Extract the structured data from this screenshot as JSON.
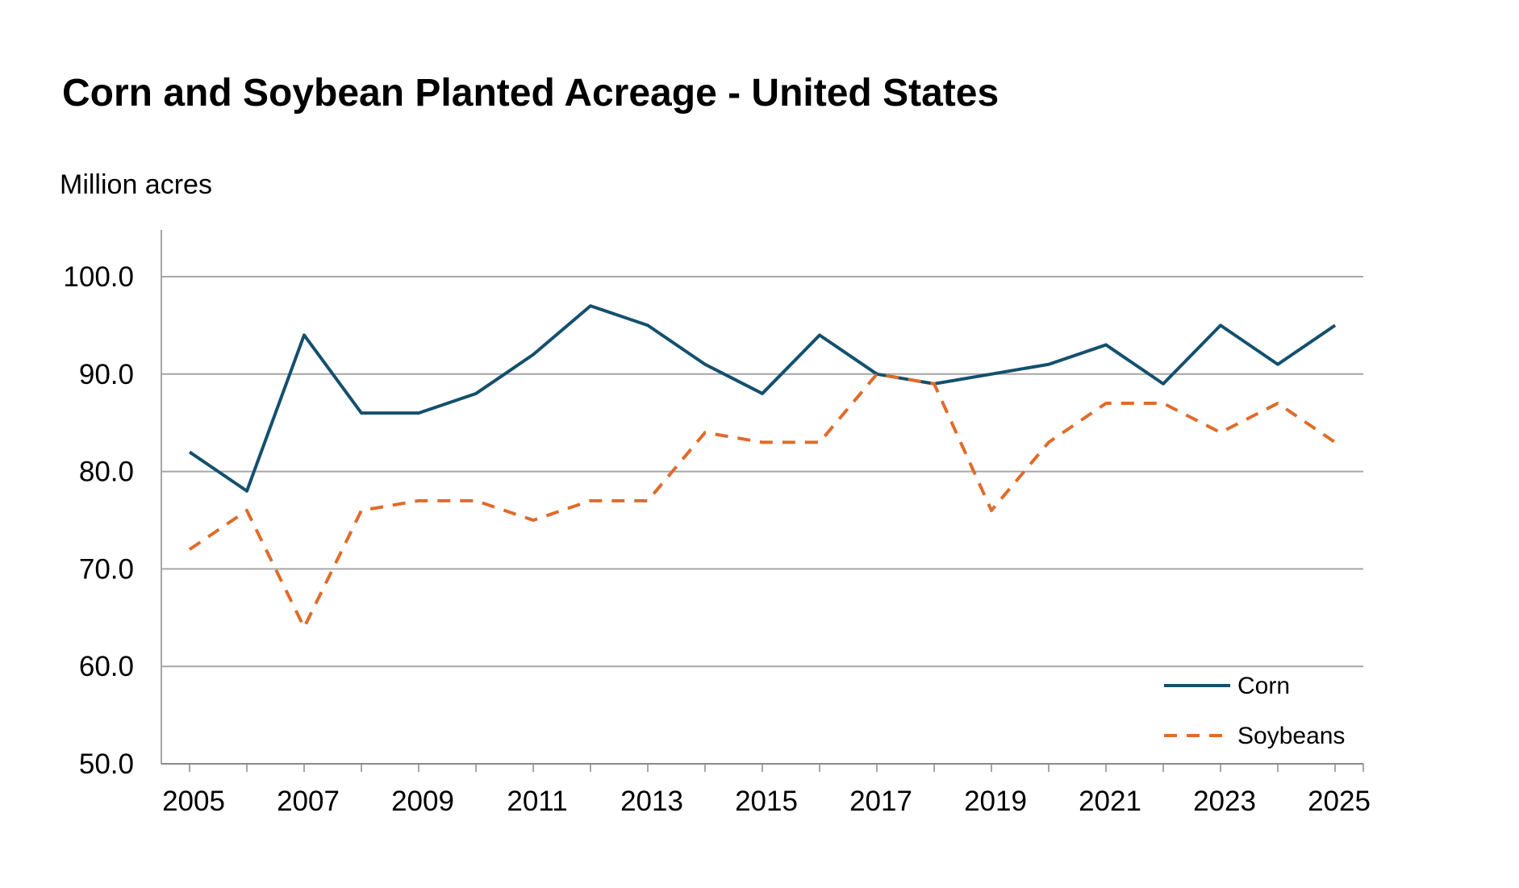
{
  "chart_data": {
    "type": "line",
    "title": "Corn and Soybean Planted Acreage - United States",
    "ylabel": "Million acres",
    "xlabel": "",
    "ylim": [
      50,
      100
    ],
    "yticks": [
      "50.0",
      "60.0",
      "70.0",
      "80.0",
      "90.0",
      "100.0"
    ],
    "xticks": [
      "2005",
      "2007",
      "2009",
      "2011",
      "2013",
      "2015",
      "2017",
      "2019",
      "2021",
      "2023",
      "2025"
    ],
    "x": [
      2005,
      2006,
      2007,
      2008,
      2009,
      2010,
      2011,
      2012,
      2013,
      2014,
      2015,
      2016,
      2017,
      2018,
      2019,
      2020,
      2021,
      2022,
      2023,
      2024,
      2025
    ],
    "grid": "horizontal",
    "legend_position": "bottom-right",
    "series": [
      {
        "name": "Corn",
        "color": "#14506e",
        "style": "solid",
        "values": [
          82,
          78,
          94,
          86,
          86,
          88,
          92,
          97,
          95,
          91,
          88,
          94,
          90,
          89,
          90,
          91,
          93,
          89,
          95,
          91,
          95
        ]
      },
      {
        "name": "Soybeans",
        "color": "#e06b2a",
        "style": "dashed",
        "values": [
          72,
          76,
          64,
          76,
          77,
          77,
          75,
          77,
          77,
          84,
          83,
          83,
          90,
          89,
          76,
          83,
          87,
          87,
          84,
          87,
          83
        ]
      }
    ]
  }
}
